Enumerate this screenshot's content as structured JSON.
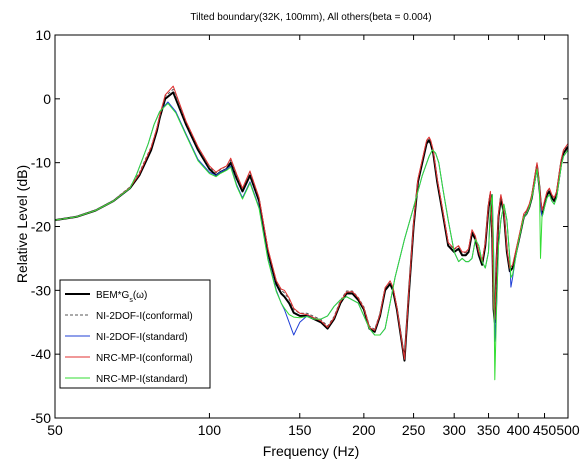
{
  "chart_data": {
    "type": "line",
    "title": "Tilted boundary(32K, 100mm), All others(beta = 0.004)",
    "xlabel": "Frequency (Hz)",
    "ylabel": "Relative Level (dB)",
    "xscale": "log",
    "xlim": [
      50,
      500
    ],
    "ylim": [
      -50,
      10
    ],
    "xticks": [
      50,
      100,
      150,
      200,
      250,
      300,
      350,
      400,
      450,
      500
    ],
    "xtick_labels": [
      "50",
      "100",
      "150",
      "200",
      "250",
      "300",
      "350",
      "400",
      "450",
      "500"
    ],
    "yticks": [
      -50,
      -40,
      -30,
      -20,
      -10,
      0,
      10
    ],
    "ytick_labels": [
      "-50",
      "-40",
      "-30",
      "-20",
      "-10",
      "0",
      "10"
    ],
    "grid": false,
    "legend": {
      "position": "bottom-left",
      "entries": [
        {
          "prefix": "BEM*G",
          "sub": "s",
          "suffix": "(ω)"
        },
        {
          "prefix": "NI-2DOF-I(conformal)",
          "sub": "",
          "suffix": ""
        },
        {
          "prefix": "NI-2DOF-I(standard)",
          "sub": "",
          "suffix": ""
        },
        {
          "prefix": "NRC-MP-I(conformal)",
          "sub": "",
          "suffix": ""
        },
        {
          "prefix": "NRC-MP-I(standard)",
          "sub": "",
          "suffix": ""
        }
      ]
    },
    "series": [
      {
        "color": "#000000",
        "dash": "",
        "width": 2,
        "x": [
          50,
          55,
          60,
          65,
          70,
          73,
          75,
          77,
          79,
          80,
          82,
          85,
          90,
          95,
          100,
          103,
          105,
          108,
          110,
          113,
          116,
          120,
          125,
          130,
          135,
          138,
          140,
          143,
          146,
          150,
          155,
          160,
          165,
          170,
          175,
          180,
          185,
          190,
          195,
          200,
          205,
          210,
          215,
          220,
          225,
          228,
          232,
          236,
          240,
          245,
          250,
          255,
          260,
          265,
          268,
          270,
          273,
          278,
          285,
          292,
          300,
          306,
          311,
          316,
          320,
          325,
          330,
          335,
          340,
          345,
          350,
          353,
          356,
          358,
          360,
          363,
          366,
          370,
          375,
          380,
          385,
          390,
          395,
          400,
          405,
          410,
          415,
          420,
          425,
          430,
          435,
          440,
          442,
          445,
          447,
          450,
          455,
          460,
          465,
          470,
          475,
          480,
          485,
          490,
          495,
          500
        ],
        "y": [
          -19,
          -18.5,
          -17.5,
          -16,
          -14,
          -12,
          -10,
          -8,
          -5,
          -3,
          0,
          1,
          -4,
          -8,
          -11,
          -12,
          -11.5,
          -11,
          -10,
          -12.5,
          -14.5,
          -12,
          -16,
          -24,
          -29,
          -30.5,
          -31,
          -32,
          -33.5,
          -34,
          -34,
          -34.5,
          -35,
          -36,
          -34.5,
          -32,
          -30.5,
          -30.5,
          -31.5,
          -33,
          -36,
          -36.5,
          -34,
          -30,
          -29,
          -30,
          -33,
          -37,
          -41,
          -30,
          -20,
          -13,
          -10,
          -7,
          -6.5,
          -7,
          -8.5,
          -13,
          -18,
          -23,
          -24,
          -23.5,
          -24.5,
          -24.5,
          -24,
          -21,
          -22,
          -24.5,
          -26,
          -23,
          -17,
          -15,
          -22,
          -33,
          -35,
          -25,
          -18.5,
          -15.5,
          -18,
          -24,
          -27,
          -26.5,
          -24.5,
          -22.5,
          -20.5,
          -18.5,
          -18,
          -17,
          -15.5,
          -13,
          -10.5,
          -14,
          -16,
          -18,
          -17.5,
          -16.5,
          -15,
          -14.5,
          -15.5,
          -16,
          -15,
          -12.5,
          -10,
          -8.5,
          -8,
          -7.5
        ]
      },
      {
        "color": "#555555",
        "dash": "3,2",
        "width": 1,
        "x": [
          50,
          55,
          60,
          65,
          70,
          73,
          75,
          77,
          79,
          80,
          82,
          85,
          90,
          95,
          100,
          103,
          105,
          108,
          110,
          113,
          116,
          120,
          125,
          130,
          135,
          138,
          140,
          143,
          146,
          150,
          155,
          160,
          165,
          170,
          175,
          180,
          185,
          190,
          195,
          200,
          205,
          210,
          215,
          220,
          225,
          228,
          232,
          236,
          240,
          245,
          250,
          255,
          260,
          265,
          268,
          270,
          273,
          278,
          285,
          292,
          300,
          306,
          311,
          316,
          320,
          325,
          330,
          335,
          340,
          345,
          350,
          353,
          356,
          358,
          360,
          363,
          366,
          370,
          375,
          380,
          385,
          390,
          395,
          400,
          405,
          410,
          415,
          420,
          425,
          430,
          435,
          440,
          442,
          445,
          447,
          450,
          455,
          460,
          465,
          470,
          475,
          480,
          485,
          490,
          495,
          500
        ],
        "y": [
          -19,
          -18.4,
          -17.4,
          -15.9,
          -13.8,
          -11.6,
          -9.5,
          -7.5,
          -4.6,
          -2.8,
          0.4,
          1.5,
          -3.6,
          -7.6,
          -10.7,
          -11.6,
          -11.1,
          -10.5,
          -9.6,
          -12.1,
          -14.1,
          -11.5,
          -15.6,
          -23.5,
          -28.5,
          -30,
          -30.4,
          -31.4,
          -33,
          -33.6,
          -33.6,
          -34.1,
          -34.6,
          -35.6,
          -34.1,
          -31.6,
          -30.1,
          -30.1,
          -31.1,
          -32.6,
          -35.6,
          -36.1,
          -33.6,
          -29.6,
          -28.6,
          -29.6,
          -32.6,
          -36.6,
          -40.6,
          -29.6,
          -19.6,
          -12.6,
          -9.6,
          -6.6,
          -6.1,
          -6.6,
          -8.1,
          -12.6,
          -17.6,
          -22.6,
          -23.6,
          -23.1,
          -24.1,
          -24.1,
          -23.6,
          -20.6,
          -21.6,
          -24.1,
          -25.6,
          -22.6,
          -16.6,
          -14.6,
          -21.6,
          -32.6,
          -34.6,
          -24.6,
          -18.1,
          -15.1,
          -17.6,
          -23.6,
          -26.6,
          -26.1,
          -24.1,
          -22.1,
          -20.1,
          -18.1,
          -17.6,
          -16.6,
          -15.1,
          -12.6,
          -10.1,
          -13.6,
          -15.6,
          -17.6,
          -17.1,
          -16.1,
          -14.6,
          -14.1,
          -15.1,
          -15.6,
          -14.6,
          -12.1,
          -9.6,
          -8.1,
          -7.6,
          -7.1
        ]
      },
      {
        "color": "#1f3fd6",
        "dash": "",
        "width": 1,
        "x": [
          50,
          55,
          60,
          65,
          70,
          72,
          74,
          76,
          78,
          80,
          83,
          86,
          90,
          95,
          100,
          103,
          105,
          108,
          110,
          113,
          116,
          120,
          125,
          130,
          135,
          138,
          140,
          143,
          146,
          150,
          155,
          160,
          165,
          170,
          175,
          180,
          185,
          190,
          195,
          200,
          205,
          210,
          215,
          220,
          225,
          230,
          240,
          250,
          260,
          268,
          272,
          276,
          280,
          285,
          292,
          300,
          306,
          311,
          316,
          320,
          325,
          330,
          335,
          340,
          345,
          350,
          353,
          356,
          358,
          360,
          363,
          366,
          370,
          375,
          380,
          385,
          387,
          390,
          395,
          400,
          405,
          410,
          415,
          420,
          425,
          430,
          435,
          440,
          442,
          445,
          447,
          450,
          455,
          460,
          465,
          470,
          475,
          480,
          485,
          490,
          495,
          500
        ],
        "y": [
          -19,
          -18.5,
          -17.5,
          -16,
          -14,
          -12,
          -9.5,
          -7,
          -4,
          -2,
          -0.5,
          -2,
          -5.5,
          -9.5,
          -11.5,
          -12,
          -11.5,
          -11,
          -10.5,
          -13.5,
          -15.5,
          -13,
          -17,
          -25,
          -30,
          -32,
          -33,
          -35,
          -37,
          -35,
          -34,
          -34.5,
          -34.5,
          -34,
          -32.5,
          -31.5,
          -31,
          -31.5,
          -32,
          -34,
          -36,
          -37,
          -37,
          -36,
          -32,
          -28,
          -22,
          -17,
          -12,
          -9,
          -8,
          -8.5,
          -10,
          -14,
          -19,
          -24,
          -25.5,
          -25,
          -25.5,
          -25.5,
          -25,
          -22,
          -23,
          -25.5,
          -26.5,
          -24,
          -17,
          -15,
          -24,
          -38,
          -32,
          -23,
          -19,
          -16.5,
          -19,
          -25,
          -29.5,
          -28,
          -25,
          -22.5,
          -20.5,
          -18.5,
          -18,
          -17,
          -15.5,
          -13.5,
          -11,
          -14,
          -16.5,
          -18.5,
          -18,
          -17,
          -15.5,
          -15,
          -16,
          -16.5,
          -15.5,
          -13,
          -10.5,
          -9,
          -8.5,
          -8
        ]
      },
      {
        "color": "#e03030",
        "dash": "",
        "width": 1,
        "x": [
          50,
          55,
          60,
          65,
          70,
          73,
          75,
          77,
          79,
          80,
          82,
          85,
          90,
          95,
          100,
          103,
          105,
          108,
          110,
          113,
          116,
          120,
          125,
          130,
          135,
          138,
          140,
          143,
          146,
          150,
          155,
          160,
          165,
          170,
          175,
          180,
          185,
          190,
          195,
          200,
          205,
          210,
          215,
          220,
          225,
          228,
          232,
          236,
          240,
          245,
          250,
          255,
          260,
          265,
          268,
          270,
          273,
          278,
          285,
          292,
          300,
          306,
          311,
          316,
          320,
          325,
          330,
          335,
          340,
          345,
          350,
          353,
          356,
          358,
          360,
          363,
          366,
          370,
          375,
          380,
          385,
          390,
          395,
          400,
          405,
          410,
          415,
          420,
          425,
          430,
          435,
          440,
          442,
          445,
          447,
          450,
          455,
          460,
          465,
          470,
          475,
          480,
          485,
          490,
          495,
          500
        ],
        "y": [
          -19,
          -18.5,
          -17.5,
          -16,
          -13.9,
          -11.8,
          -9.7,
          -7.6,
          -4.6,
          -2.6,
          0.6,
          2,
          -3.5,
          -7.5,
          -10.5,
          -11.5,
          -11,
          -10.5,
          -9.3,
          -11.8,
          -14,
          -11.3,
          -15.5,
          -23.5,
          -28.5,
          -29.8,
          -30,
          -31.2,
          -32.8,
          -33.6,
          -33.8,
          -34.3,
          -34.8,
          -35.8,
          -34.3,
          -31.8,
          -30.3,
          -30.2,
          -31.2,
          -32.8,
          -35.8,
          -36.3,
          -33.8,
          -29.6,
          -28.5,
          -29.5,
          -32.7,
          -36.8,
          -40.8,
          -29.5,
          -19.5,
          -12.5,
          -9.5,
          -6.5,
          -6,
          -6.5,
          -8,
          -12.5,
          -17.5,
          -22.5,
          -23.5,
          -23,
          -24,
          -24,
          -23.5,
          -20.5,
          -21.5,
          -24,
          -25.5,
          -22.5,
          -16.5,
          -14.5,
          -21.5,
          -32.5,
          -34.5,
          -24.5,
          -18,
          -15,
          -17.5,
          -23.5,
          -26.5,
          -26,
          -24,
          -22,
          -20,
          -18,
          -17.5,
          -16.5,
          -15,
          -12.5,
          -10,
          -13.5,
          -15.5,
          -17.5,
          -17,
          -16,
          -14.5,
          -14,
          -15,
          -15.5,
          -14.5,
          -12,
          -9.5,
          -8,
          -7.5,
          -7
        ]
      },
      {
        "color": "#33dd33",
        "dash": "",
        "width": 1,
        "x": [
          50,
          55,
          60,
          65,
          70,
          72,
          74,
          76,
          78,
          80,
          83,
          86,
          90,
          95,
          100,
          103,
          105,
          108,
          110,
          113,
          116,
          120,
          125,
          130,
          135,
          138,
          140,
          143,
          146,
          150,
          155,
          160,
          165,
          170,
          175,
          180,
          185,
          190,
          195,
          200,
          205,
          210,
          215,
          220,
          225,
          230,
          240,
          250,
          260,
          268,
          272,
          276,
          280,
          285,
          292,
          300,
          306,
          311,
          316,
          320,
          325,
          330,
          335,
          340,
          345,
          350,
          353,
          356,
          358,
          360,
          363,
          366,
          370,
          375,
          380,
          385,
          387,
          390,
          395,
          400,
          405,
          410,
          415,
          420,
          425,
          430,
          435,
          440,
          442,
          445,
          447,
          450,
          455,
          460,
          465,
          470,
          475,
          480,
          485,
          490,
          495,
          500
        ],
        "y": [
          -19,
          -18.5,
          -17.5,
          -16,
          -14,
          -12,
          -9.5,
          -7,
          -4,
          -2,
          -0.7,
          -2.2,
          -5.7,
          -9.7,
          -11.7,
          -12.2,
          -11.7,
          -11.2,
          -10.7,
          -13.7,
          -15.7,
          -13.2,
          -17.2,
          -25.2,
          -30.2,
          -32,
          -32.8,
          -33.8,
          -34.2,
          -34.3,
          -34.1,
          -34.5,
          -34.5,
          -34,
          -32.5,
          -31.5,
          -31,
          -31.5,
          -32,
          -34,
          -36,
          -37,
          -37,
          -36,
          -32,
          -28,
          -22,
          -17,
          -12,
          -9,
          -8,
          -8.5,
          -10,
          -14,
          -19,
          -24,
          -25.5,
          -25,
          -25.5,
          -25.5,
          -25,
          -22,
          -23,
          -25.5,
          -26.5,
          -24,
          -17,
          -15,
          -24,
          -44,
          -32,
          -23,
          -19,
          -16.5,
          -19,
          -25,
          -28,
          -27.5,
          -25,
          -22.5,
          -20.5,
          -18.5,
          -18,
          -17,
          -15.5,
          -13.5,
          -11,
          -14,
          -25,
          -18.5,
          -18,
          -17,
          -15.5,
          -15,
          -16,
          -16.5,
          -15.5,
          -13,
          -10.5,
          -9,
          -8.5,
          -8
        ]
      }
    ]
  }
}
